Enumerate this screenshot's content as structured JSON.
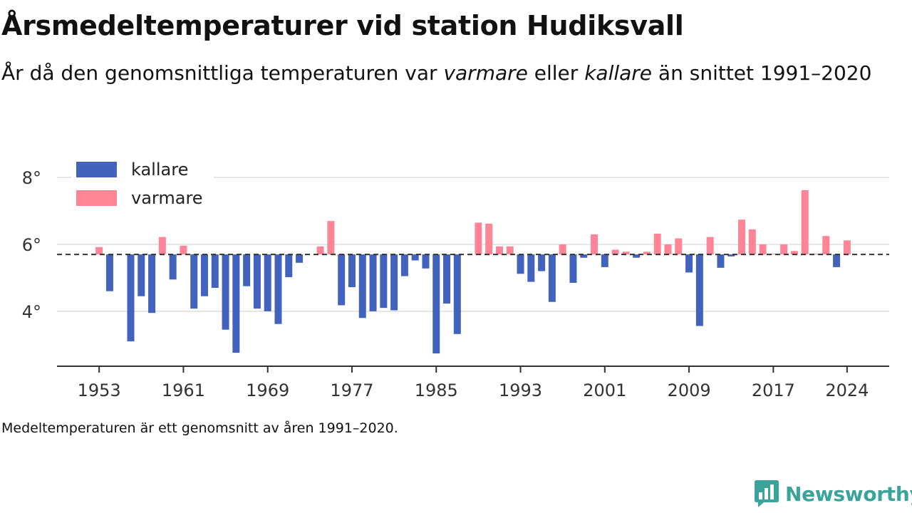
{
  "header": {
    "title": "Årsmedeltemperaturer vid station Hudiksvall",
    "subtitle_pre": "År då den genomsnittliga temperaturen var ",
    "subtitle_warm": "varmare",
    "subtitle_mid": " eller ",
    "subtitle_cold": "kallare",
    "subtitle_post": " än snittet 1991–2020"
  },
  "caption": "Medeltemperaturen är ett genomsnitt av åren 1991–2020.",
  "brand": {
    "name": "Newsworthy",
    "color": "#3aa39a"
  },
  "chart_data": {
    "type": "bar",
    "baseline": 5.7,
    "ylim": [
      2.4,
      8.3
    ],
    "yticks": [
      4,
      6,
      8
    ],
    "ytick_labels": [
      "4°",
      "6°",
      "8°"
    ],
    "xticks": [
      1953,
      1961,
      1969,
      1977,
      1985,
      1993,
      2001,
      2009,
      2017,
      2024
    ],
    "xlim": [
      1949,
      2028
    ],
    "colors": {
      "kallare": "#4263bd",
      "varmare": "#ff8596"
    },
    "legend": [
      {
        "key": "kallare",
        "label": "kallare"
      },
      {
        "key": "varmare",
        "label": "varmare"
      }
    ],
    "legend_position": "top-left",
    "grid": true,
    "years": [
      1953,
      1954,
      1955,
      1956,
      1957,
      1958,
      1959,
      1960,
      1961,
      1962,
      1963,
      1964,
      1965,
      1966,
      1967,
      1968,
      1969,
      1970,
      1971,
      1972,
      1973,
      1974,
      1975,
      1976,
      1977,
      1978,
      1979,
      1980,
      1981,
      1982,
      1983,
      1984,
      1985,
      1986,
      1987,
      1988,
      1989,
      1990,
      1991,
      1992,
      1993,
      1994,
      1995,
      1996,
      1997,
      1998,
      1999,
      2000,
      2001,
      2002,
      2003,
      2004,
      2005,
      2006,
      2007,
      2008,
      2009,
      2010,
      2011,
      2012,
      2013,
      2014,
      2015,
      2016,
      2017,
      2018,
      2019,
      2020,
      2021,
      2022,
      2023,
      2024
    ],
    "values": [
      5.92,
      4.6,
      null,
      3.1,
      4.45,
      3.95,
      6.22,
      4.95,
      5.96,
      4.08,
      4.45,
      4.7,
      3.45,
      2.76,
      4.75,
      4.08,
      4.0,
      3.62,
      5.02,
      5.45,
      null,
      5.94,
      6.7,
      4.18,
      4.72,
      3.8,
      4.0,
      4.1,
      4.03,
      5.05,
      5.52,
      5.28,
      2.74,
      4.23,
      3.32,
      null,
      6.65,
      6.62,
      5.94,
      5.94,
      5.12,
      4.88,
      5.2,
      4.28,
      6.0,
      4.85,
      5.6,
      6.3,
      5.32,
      5.84,
      5.78,
      5.6,
      5.78,
      6.32,
      6.0,
      6.18,
      5.16,
      3.56,
      6.22,
      5.3,
      5.64,
      6.74,
      6.45,
      6.0,
      5.72,
      6.0,
      5.8,
      7.62,
      5.72,
      6.25,
      5.32,
      6.12
    ]
  }
}
